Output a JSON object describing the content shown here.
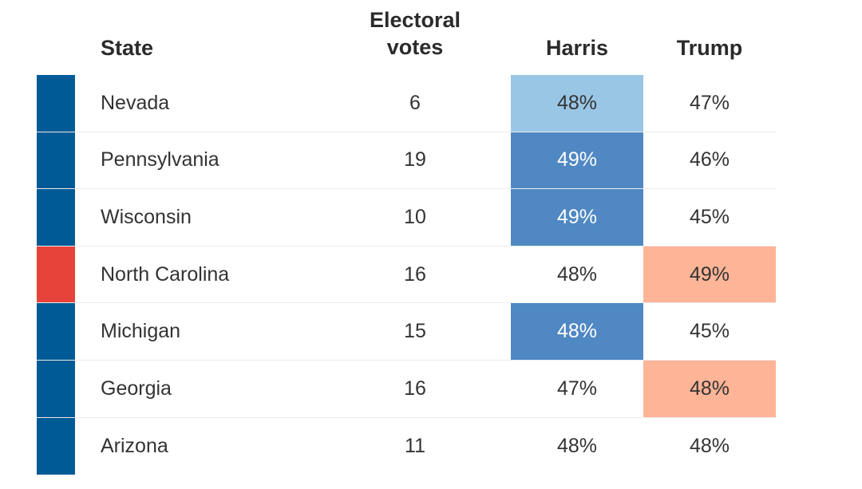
{
  "headers": {
    "state": "State",
    "ev_line1": "Electoral",
    "ev_line2": "votes",
    "harris": "Harris",
    "trump": "Trump"
  },
  "colors": {
    "dem_dark": "#005a96",
    "rep_red": "#e8433a",
    "harris_light": "#9ac6e6",
    "harris_mid": "#4f88c3",
    "trump_light": "#fdb497"
  },
  "chart_data": {
    "type": "table",
    "columns": [
      "State",
      "Electoral votes",
      "Harris",
      "Trump"
    ],
    "rows": [
      {
        "state": "Nevada",
        "ev": "6",
        "harris": "48%",
        "trump": "47%",
        "lean": "dem",
        "harris_shade": "light",
        "trump_shade": "none"
      },
      {
        "state": "Pennsylvania",
        "ev": "19",
        "harris": "49%",
        "trump": "46%",
        "lean": "dem",
        "harris_shade": "mid",
        "trump_shade": "none"
      },
      {
        "state": "Wisconsin",
        "ev": "10",
        "harris": "49%",
        "trump": "45%",
        "lean": "dem",
        "harris_shade": "mid",
        "trump_shade": "none"
      },
      {
        "state": "North Carolina",
        "ev": "16",
        "harris": "48%",
        "trump": "49%",
        "lean": "rep",
        "harris_shade": "none",
        "trump_shade": "light"
      },
      {
        "state": "Michigan",
        "ev": "15",
        "harris": "48%",
        "trump": "45%",
        "lean": "dem",
        "harris_shade": "mid",
        "trump_shade": "none"
      },
      {
        "state": "Georgia",
        "ev": "16",
        "harris": "47%",
        "trump": "48%",
        "lean": "dem",
        "harris_shade": "none",
        "trump_shade": "light"
      },
      {
        "state": "Arizona",
        "ev": "11",
        "harris": "48%",
        "trump": "48%",
        "lean": "dem",
        "harris_shade": "none",
        "trump_shade": "none"
      }
    ]
  }
}
